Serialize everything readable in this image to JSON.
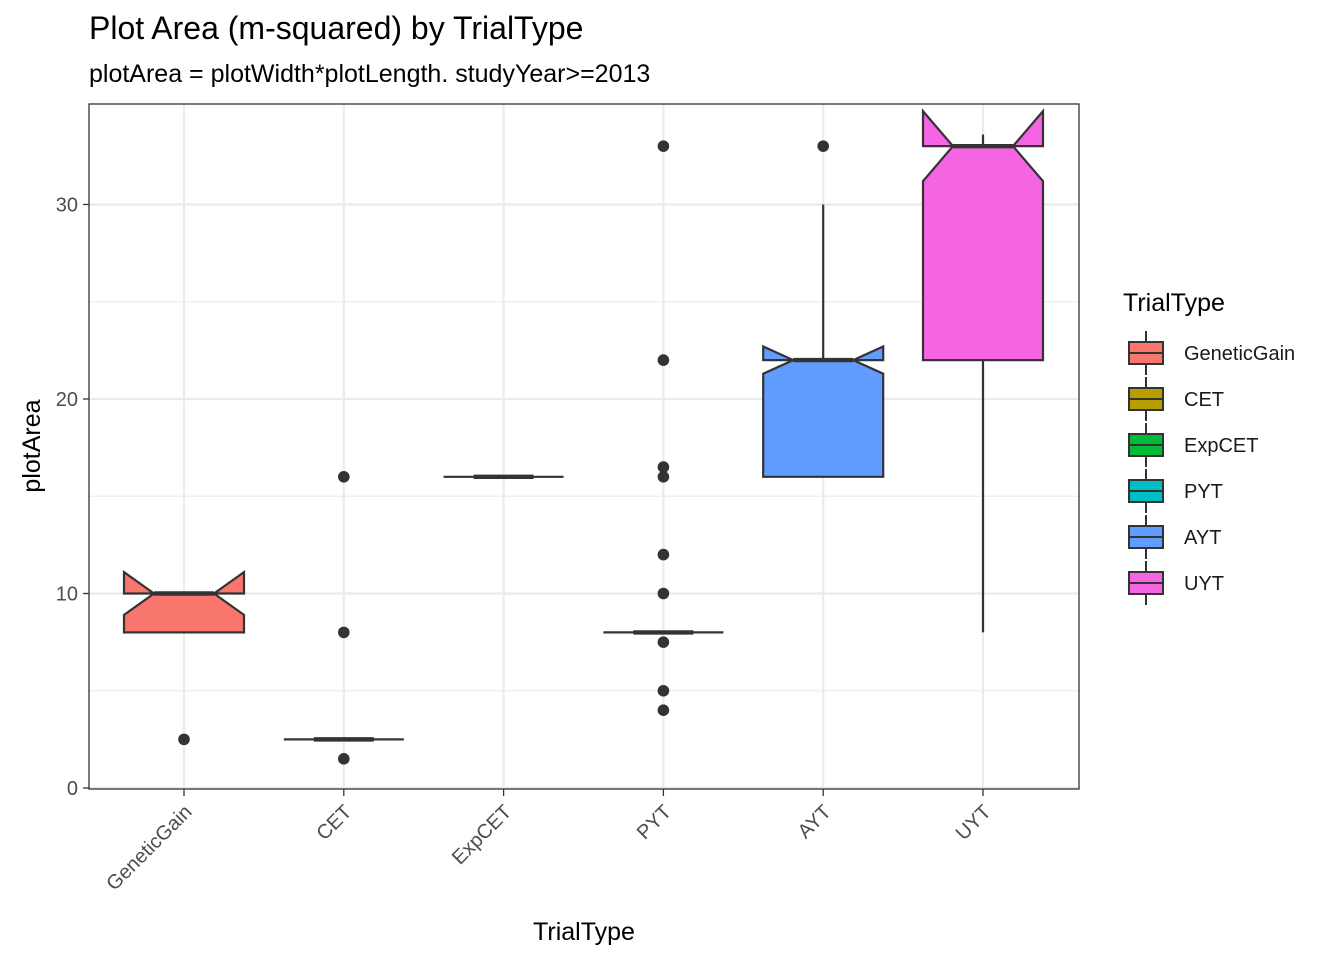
{
  "chart_data": {
    "type": "boxplot",
    "title": "Plot Area (m-squared) by TrialType",
    "subtitle": "plotArea = plotWidth*plotLength. studyYear>=2013",
    "xlabel": "TrialType",
    "ylabel": "plotArea",
    "ylim": [
      0,
      35
    ],
    "y_ticks": [
      0,
      10,
      20,
      30
    ],
    "grid": true,
    "notched": true,
    "legend": {
      "title": "TrialType",
      "placement": "right"
    },
    "categories": [
      "GeneticGain",
      "CET",
      "ExpCET",
      "PYT",
      "AYT",
      "UYT"
    ],
    "series": [
      {
        "name": "GeneticGain",
        "color": "#F8766D",
        "q1": 8,
        "median": 10,
        "q3": 10,
        "notch_low": 8.9,
        "notch_high": 11.1,
        "whisker_low": 8,
        "whisker_high": 10,
        "outliers": [
          2.5
        ]
      },
      {
        "name": "CET",
        "color": "#B79F00",
        "q1": 2.5,
        "median": 2.5,
        "q3": 2.5,
        "notch_low": 2.5,
        "notch_high": 2.5,
        "whisker_low": 2.5,
        "whisker_high": 2.5,
        "outliers": [
          16,
          8,
          1.5
        ]
      },
      {
        "name": "ExpCET",
        "color": "#00BA38",
        "q1": 16,
        "median": 16,
        "q3": 16,
        "notch_low": 16,
        "notch_high": 16,
        "whisker_low": 16,
        "whisker_high": 16,
        "outliers": []
      },
      {
        "name": "PYT",
        "color": "#00BFC4",
        "q1": 8,
        "median": 8,
        "q3": 8,
        "notch_low": 8,
        "notch_high": 8,
        "whisker_low": 8,
        "whisker_high": 8,
        "outliers": [
          33,
          22,
          16.5,
          16,
          12,
          10,
          7.5,
          5,
          4
        ]
      },
      {
        "name": "AYT",
        "color": "#619CFF",
        "q1": 16,
        "median": 22,
        "q3": 22,
        "notch_low": 21.3,
        "notch_high": 22.7,
        "whisker_low": 16,
        "whisker_high": 30,
        "outliers": [
          33
        ]
      },
      {
        "name": "UYT",
        "color": "#F564E3",
        "q1": 22,
        "median": 33,
        "q3": 33,
        "notch_low": 31.2,
        "notch_high": 34.8,
        "whisker_low": 8,
        "whisker_high": 33.6,
        "outliers": []
      }
    ]
  }
}
